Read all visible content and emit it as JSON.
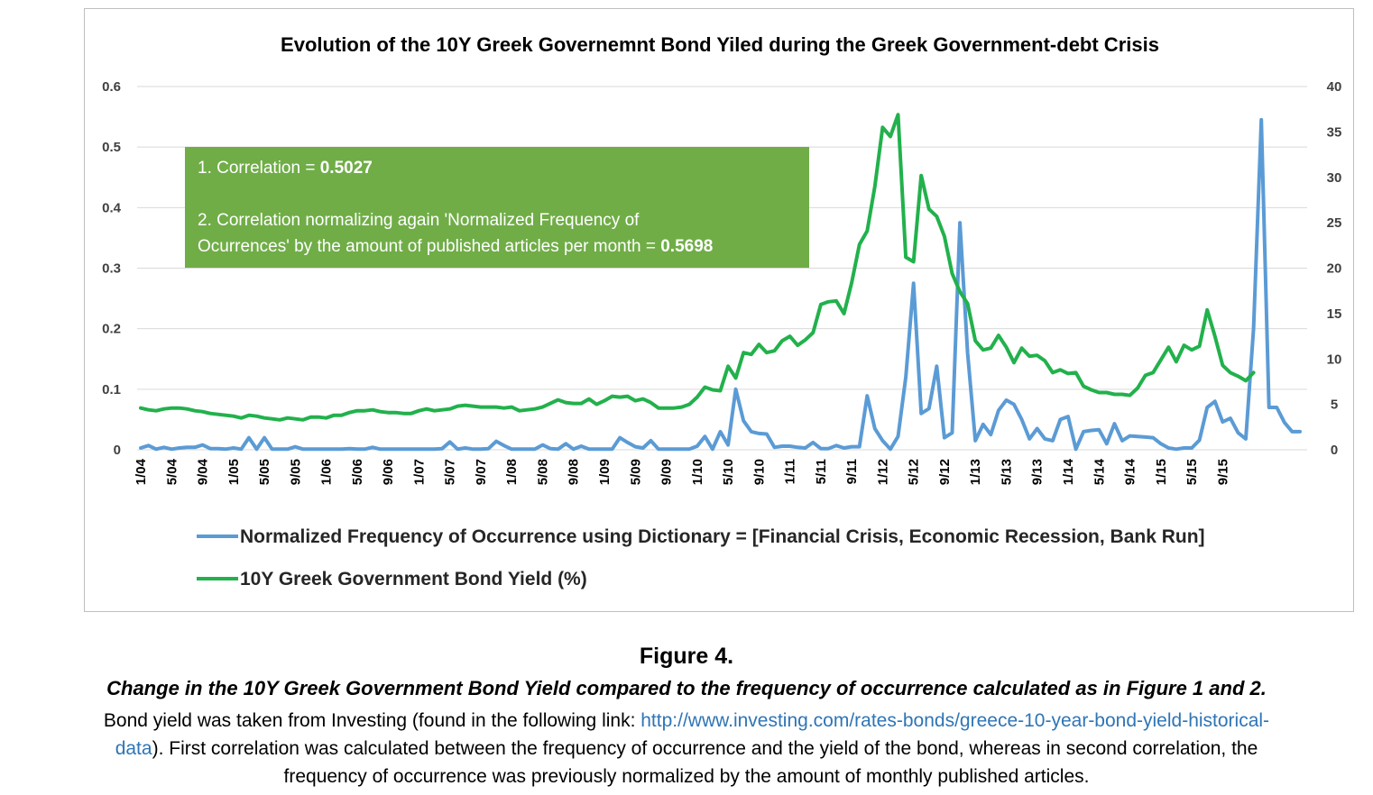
{
  "chart_data": {
    "type": "line",
    "title": "Evolution of the 10Y Greek Governemnt Bond Yiled during the Greek Government-debt Crisis",
    "y_left": {
      "min": 0,
      "max": 0.6,
      "ticks": [
        "0",
        "0.1",
        "0.2",
        "0.3",
        "0.4",
        "0.5",
        "0.6"
      ]
    },
    "y_right": {
      "min": 0,
      "max": 40,
      "ticks": [
        "0",
        "5",
        "10",
        "15",
        "20",
        "25",
        "30",
        "35",
        "40"
      ]
    },
    "x_tick_labels": [
      "1/04",
      "5/04",
      "9/04",
      "1/05",
      "5/05",
      "9/05",
      "1/06",
      "5/06",
      "9/06",
      "1/07",
      "5/07",
      "9/07",
      "1/08",
      "5/08",
      "9/08",
      "1/09",
      "5/09",
      "9/09",
      "1/10",
      "5/10",
      "9/10",
      "1/11",
      "5/11",
      "9/11",
      "1/12",
      "5/12",
      "9/12",
      "1/13",
      "5/13",
      "9/13",
      "1/14",
      "5/14",
      "9/14",
      "1/15",
      "5/15",
      "9/15"
    ],
    "grid": true,
    "legend_position": "bottom",
    "series": [
      {
        "name": "Normalized Frequency of Occurrence using Dictionary = [Financial Crisis, Economic Recession, Bank Run]",
        "axis": "left",
        "color": "#5b9bd5",
        "values": [
          0.003,
          0.007,
          0.001,
          0.004,
          0.001,
          0.003,
          0.004,
          0.004,
          0.008,
          0.002,
          0.002,
          0.001,
          0.003,
          0.001,
          0.02,
          0.001,
          0.02,
          0.001,
          0.001,
          0.001,
          0.005,
          0.001,
          0.001,
          0.001,
          0.001,
          0.001,
          0.001,
          0.002,
          0.001,
          0.001,
          0.004,
          0.001,
          0.001,
          0.001,
          0.001,
          0.001,
          0.001,
          0.001,
          0.001,
          0.002,
          0.013,
          0.001,
          0.003,
          0.001,
          0.001,
          0.002,
          0.014,
          0.007,
          0.001,
          0.001,
          0.001,
          0.001,
          0.008,
          0.002,
          0.001,
          0.01,
          0.001,
          0.006,
          0.001,
          0.001,
          0.001,
          0.001,
          0.02,
          0.012,
          0.005,
          0.003,
          0.015,
          0.001,
          0.001,
          0.001,
          0.001,
          0.001,
          0.006,
          0.022,
          0.001,
          0.03,
          0.008,
          0.1,
          0.048,
          0.03,
          0.027,
          0.026,
          0.004,
          0.006,
          0.006,
          0.004,
          0.003,
          0.012,
          0.002,
          0.002,
          0.007,
          0.003,
          0.005,
          0.005,
          0.089,
          0.035,
          0.015,
          0.001,
          0.022,
          0.12,
          0.275,
          0.06,
          0.068,
          0.138,
          0.02,
          0.028,
          0.375,
          0.16,
          0.015,
          0.042,
          0.025,
          0.065,
          0.082,
          0.075,
          0.05,
          0.018,
          0.035,
          0.018,
          0.015,
          0.05,
          0.055,
          0.001,
          0.03,
          0.032,
          0.033,
          0.01,
          0.043,
          0.015,
          0.023,
          0.022,
          0.021,
          0.02,
          0.01,
          0.003,
          0.001,
          0.003,
          0.003,
          0.016,
          0.07,
          0.08,
          0.046,
          0.052,
          0.028,
          0.018,
          0.2,
          0.545,
          0.07,
          0.07,
          0.045,
          0.03,
          0.03
        ]
      },
      {
        "name": "10Y Greek Government Bond Yield (%)",
        "axis": "right",
        "color": "#22b14c",
        "values": [
          4.6,
          4.4,
          4.3,
          4.5,
          4.6,
          4.6,
          4.5,
          4.3,
          4.2,
          4.0,
          3.9,
          3.8,
          3.7,
          3.5,
          3.8,
          3.7,
          3.5,
          3.4,
          3.3,
          3.5,
          3.4,
          3.3,
          3.6,
          3.6,
          3.5,
          3.8,
          3.8,
          4.1,
          4.3,
          4.3,
          4.4,
          4.2,
          4.1,
          4.1,
          4.0,
          4.0,
          4.3,
          4.5,
          4.3,
          4.4,
          4.5,
          4.8,
          4.9,
          4.8,
          4.7,
          4.7,
          4.7,
          4.6,
          4.7,
          4.3,
          4.4,
          4.5,
          4.7,
          5.1,
          5.5,
          5.2,
          5.1,
          5.1,
          5.6,
          5.0,
          5.4,
          5.9,
          5.8,
          5.9,
          5.4,
          5.6,
          5.2,
          4.6,
          4.6,
          4.6,
          4.7,
          5.0,
          5.8,
          6.9,
          6.6,
          6.5,
          9.2,
          7.9,
          10.7,
          10.5,
          11.6,
          10.7,
          10.9,
          12.0,
          12.5,
          11.5,
          12.1,
          12.9,
          16.0,
          16.3,
          16.4,
          15.0,
          18.4,
          22.6,
          24.1,
          29.0,
          35.5,
          34.5,
          36.9,
          21.2,
          20.7,
          30.2,
          26.5,
          25.7,
          23.5,
          19.4,
          17.4,
          16.1,
          12.0,
          11.0,
          11.2,
          12.6,
          11.3,
          9.6,
          11.2,
          10.3,
          10.4,
          9.8,
          8.5,
          8.8,
          8.4,
          8.5,
          7.0,
          6.6,
          6.3,
          6.3,
          6.1,
          6.1,
          6.0,
          6.8,
          8.2,
          8.5,
          9.9,
          11.3,
          9.7,
          11.5,
          11.0,
          11.4,
          15.4,
          12.5,
          9.3,
          8.5,
          8.1,
          7.6,
          8.5
        ]
      }
    ]
  },
  "correlation_box": {
    "line1_prefix": "1. Correlation = ",
    "line1_value": "0.5027",
    "line2a": "2. Correlation normalizing again 'Normalized Frequency of",
    "line2b_prefix": "Ocurrences' by the amount of published articles per month = ",
    "line2b_value": "0.5698",
    "color": "#70ad47"
  },
  "caption": {
    "label": "Figure 4.",
    "subtitle": "Change in the 10Y Greek Government Bond Yield compared to the frequency of occurrence calculated as in Figure 1 and 2.",
    "line1_prefix": "Bond yield was taken from Investing (found in the following link: ",
    "link_part1": "http://www.investing.com/rates-bonds/greece-10-year-bond-yield-historical-",
    "link_part2": "data",
    "line2_suffix": "). First correlation was calculated between the frequency of occurrence and the yield of the bond, whereas in second correlation, the",
    "line3": "frequency of occurrence was previously normalized by the amount of monthly published articles.",
    "link_color": "#2e75b6"
  }
}
